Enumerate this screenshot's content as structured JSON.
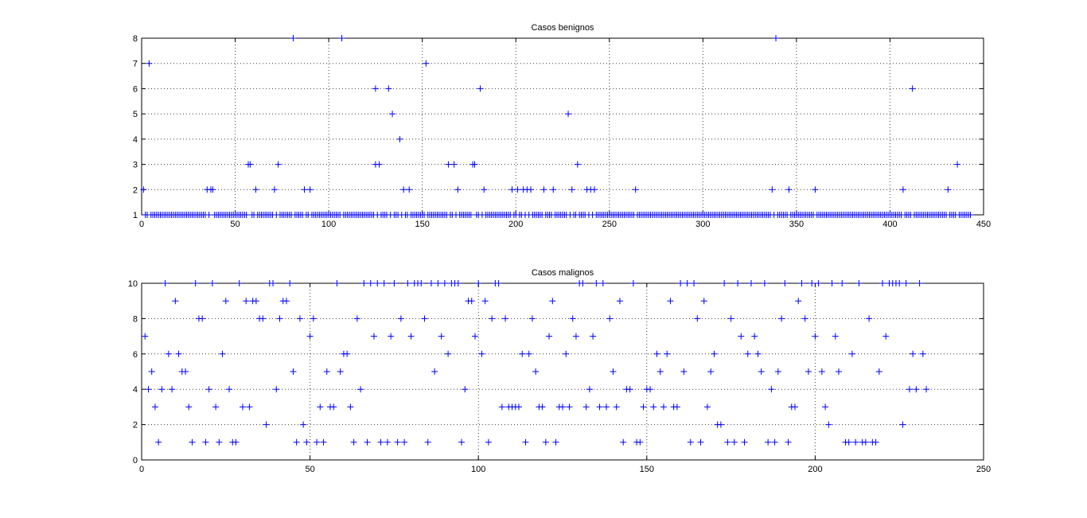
{
  "chart_data": [
    {
      "type": "scatter",
      "title": "Casos benignos",
      "xlim": [
        0,
        450
      ],
      "ylim": [
        1,
        8
      ],
      "xticks": [
        0,
        50,
        100,
        150,
        200,
        250,
        300,
        350,
        400,
        450
      ],
      "yticks": [
        1,
        2,
        3,
        4,
        5,
        6,
        7,
        8
      ],
      "grid": true,
      "marker": "+",
      "color": "#0000ff",
      "points": [
        [
          1,
          2
        ],
        [
          4,
          7
        ],
        [
          35,
          2
        ],
        [
          37,
          2
        ],
        [
          38,
          2
        ],
        [
          57,
          3
        ],
        [
          58,
          3
        ],
        [
          61,
          2
        ],
        [
          71,
          2
        ],
        [
          73,
          3
        ],
        [
          81,
          8
        ],
        [
          87,
          2
        ],
        [
          90,
          2
        ],
        [
          107,
          8
        ],
        [
          125,
          6
        ],
        [
          125,
          3
        ],
        [
          127,
          3
        ],
        [
          132,
          6
        ],
        [
          134,
          5
        ],
        [
          138,
          4
        ],
        [
          140,
          2
        ],
        [
          143,
          2
        ],
        [
          152,
          7
        ],
        [
          164,
          3
        ],
        [
          167,
          3
        ],
        [
          169,
          2
        ],
        [
          177,
          3
        ],
        [
          178,
          3
        ],
        [
          181,
          6
        ],
        [
          183,
          2
        ],
        [
          198,
          2
        ],
        [
          201,
          2
        ],
        [
          204,
          2
        ],
        [
          206,
          2
        ],
        [
          208,
          2
        ],
        [
          215,
          2
        ],
        [
          220,
          2
        ],
        [
          228,
          5
        ],
        [
          230,
          2
        ],
        [
          233,
          3
        ],
        [
          238,
          2
        ],
        [
          240,
          2
        ],
        [
          242,
          2
        ],
        [
          264,
          2
        ],
        [
          337,
          2
        ],
        [
          339,
          8
        ],
        [
          346,
          2
        ],
        [
          360,
          2
        ],
        [
          407,
          2
        ],
        [
          412,
          6
        ],
        [
          431,
          2
        ],
        [
          436,
          3
        ]
      ],
      "baseline": {
        "y": 1,
        "x_start": 1,
        "x_end": 443
      }
    },
    {
      "type": "scatter",
      "title": "Casos malignos",
      "xlim": [
        0,
        250
      ],
      "ylim": [
        0,
        10
      ],
      "xticks": [
        0,
        50,
        100,
        150,
        200,
        250
      ],
      "yticks": [
        0,
        2,
        4,
        6,
        8,
        10
      ],
      "grid": true,
      "marker": "+",
      "color": "#0000ff",
      "points": [
        [
          1,
          7
        ],
        [
          2,
          4
        ],
        [
          3,
          5
        ],
        [
          4,
          3
        ],
        [
          5,
          1
        ],
        [
          6,
          4
        ],
        [
          7,
          10
        ],
        [
          8,
          6
        ],
        [
          9,
          4
        ],
        [
          10,
          9
        ],
        [
          11,
          6
        ],
        [
          12,
          5
        ],
        [
          13,
          5
        ],
        [
          14,
          3
        ],
        [
          15,
          1
        ],
        [
          16,
          10
        ],
        [
          17,
          8
        ],
        [
          18,
          8
        ],
        [
          19,
          1
        ],
        [
          20,
          4
        ],
        [
          21,
          10
        ],
        [
          22,
          3
        ],
        [
          23,
          1
        ],
        [
          24,
          6
        ],
        [
          25,
          9
        ],
        [
          26,
          4
        ],
        [
          27,
          1
        ],
        [
          28,
          1
        ],
        [
          29,
          10
        ],
        [
          30,
          3
        ],
        [
          31,
          9
        ],
        [
          32,
          3
        ],
        [
          33,
          9
        ],
        [
          34,
          9
        ],
        [
          35,
          8
        ],
        [
          36,
          8
        ],
        [
          37,
          2
        ],
        [
          38,
          10
        ],
        [
          39,
          10
        ],
        [
          40,
          4
        ],
        [
          41,
          8
        ],
        [
          42,
          9
        ],
        [
          43,
          9
        ],
        [
          44,
          10
        ],
        [
          45,
          5
        ],
        [
          46,
          1
        ],
        [
          47,
          8
        ],
        [
          48,
          2
        ],
        [
          49,
          1
        ],
        [
          50,
          7
        ],
        [
          51,
          8
        ],
        [
          52,
          1
        ],
        [
          53,
          3
        ],
        [
          54,
          1
        ],
        [
          55,
          5
        ],
        [
          56,
          3
        ],
        [
          57,
          3
        ],
        [
          58,
          10
        ],
        [
          59,
          5
        ],
        [
          60,
          6
        ],
        [
          61,
          6
        ],
        [
          62,
          3
        ],
        [
          63,
          1
        ],
        [
          64,
          8
        ],
        [
          65,
          4
        ],
        [
          66,
          10
        ],
        [
          67,
          1
        ],
        [
          68,
          10
        ],
        [
          69,
          7
        ],
        [
          70,
          10
        ],
        [
          71,
          1
        ],
        [
          72,
          10
        ],
        [
          73,
          1
        ],
        [
          74,
          7
        ],
        [
          75,
          10
        ],
        [
          76,
          1
        ],
        [
          77,
          8
        ],
        [
          78,
          1
        ],
        [
          79,
          10
        ],
        [
          80,
          7
        ],
        [
          81,
          10
        ],
        [
          82,
          10
        ],
        [
          83,
          10
        ],
        [
          84,
          8
        ],
        [
          85,
          1
        ],
        [
          86,
          10
        ],
        [
          87,
          5
        ],
        [
          88,
          10
        ],
        [
          89,
          7
        ],
        [
          90,
          10
        ],
        [
          91,
          6
        ],
        [
          92,
          10
        ],
        [
          93,
          10
        ],
        [
          94,
          10
        ],
        [
          95,
          1
        ],
        [
          96,
          4
        ],
        [
          97,
          9
        ],
        [
          98,
          9
        ],
        [
          99,
          7
        ],
        [
          100,
          10
        ],
        [
          101,
          6
        ],
        [
          102,
          9
        ],
        [
          103,
          1
        ],
        [
          104,
          8
        ],
        [
          105,
          10
        ],
        [
          106,
          10
        ],
        [
          107,
          3
        ],
        [
          108,
          8
        ],
        [
          109,
          3
        ],
        [
          110,
          3
        ],
        [
          111,
          3
        ],
        [
          112,
          3
        ],
        [
          113,
          6
        ],
        [
          114,
          1
        ],
        [
          115,
          6
        ],
        [
          116,
          8
        ],
        [
          117,
          5
        ],
        [
          118,
          3
        ],
        [
          119,
          3
        ],
        [
          120,
          1
        ],
        [
          121,
          7
        ],
        [
          122,
          9
        ],
        [
          123,
          1
        ],
        [
          124,
          3
        ],
        [
          125,
          3
        ],
        [
          126,
          6
        ],
        [
          127,
          3
        ],
        [
          128,
          8
        ],
        [
          129,
          7
        ],
        [
          130,
          10
        ],
        [
          131,
          10
        ],
        [
          132,
          3
        ],
        [
          133,
          4
        ],
        [
          134,
          7
        ],
        [
          135,
          10
        ],
        [
          136,
          3
        ],
        [
          137,
          10
        ],
        [
          138,
          3
        ],
        [
          139,
          8
        ],
        [
          140,
          5
        ],
        [
          141,
          3
        ],
        [
          142,
          9
        ],
        [
          143,
          1
        ],
        [
          144,
          4
        ],
        [
          145,
          4
        ],
        [
          146,
          10
        ],
        [
          147,
          1
        ],
        [
          148,
          1
        ],
        [
          149,
          3
        ],
        [
          150,
          4
        ],
        [
          151,
          4
        ],
        [
          152,
          3
        ],
        [
          153,
          6
        ],
        [
          154,
          5
        ],
        [
          155,
          3
        ],
        [
          156,
          6
        ],
        [
          157,
          9
        ],
        [
          158,
          3
        ],
        [
          159,
          3
        ],
        [
          160,
          10
        ],
        [
          161,
          5
        ],
        [
          162,
          10
        ],
        [
          163,
          1
        ],
        [
          164,
          10
        ],
        [
          165,
          8
        ],
        [
          166,
          1
        ],
        [
          167,
          9
        ],
        [
          168,
          3
        ],
        [
          169,
          5
        ],
        [
          170,
          6
        ],
        [
          171,
          2
        ],
        [
          172,
          2
        ],
        [
          173,
          10
        ],
        [
          174,
          1
        ],
        [
          175,
          8
        ],
        [
          176,
          1
        ],
        [
          177,
          10
        ],
        [
          178,
          7
        ],
        [
          179,
          1
        ],
        [
          180,
          6
        ],
        [
          181,
          10
        ],
        [
          182,
          7
        ],
        [
          183,
          6
        ],
        [
          184,
          5
        ],
        [
          185,
          10
        ],
        [
          186,
          1
        ],
        [
          187,
          4
        ],
        [
          188,
          1
        ],
        [
          189,
          5
        ],
        [
          190,
          8
        ],
        [
          191,
          10
        ],
        [
          192,
          1
        ],
        [
          193,
          3
        ],
        [
          194,
          3
        ],
        [
          195,
          9
        ],
        [
          196,
          10
        ],
        [
          197,
          8
        ],
        [
          198,
          5
        ],
        [
          199,
          10
        ],
        [
          200,
          7
        ],
        [
          201,
          10
        ],
        [
          202,
          5
        ],
        [
          203,
          3
        ],
        [
          204,
          2
        ],
        [
          205,
          10
        ],
        [
          206,
          7
        ],
        [
          207,
          5
        ],
        [
          208,
          10
        ],
        [
          209,
          1
        ],
        [
          210,
          1
        ],
        [
          211,
          6
        ],
        [
          212,
          1
        ],
        [
          213,
          10
        ],
        [
          214,
          1
        ],
        [
          215,
          1
        ],
        [
          216,
          8
        ],
        [
          217,
          1
        ],
        [
          218,
          1
        ],
        [
          219,
          5
        ],
        [
          220,
          10
        ],
        [
          221,
          7
        ],
        [
          222,
          10
        ],
        [
          223,
          10
        ],
        [
          224,
          10
        ],
        [
          225,
          10
        ],
        [
          226,
          2
        ],
        [
          227,
          10
        ],
        [
          228,
          4
        ],
        [
          229,
          6
        ],
        [
          230,
          4
        ],
        [
          231,
          10
        ],
        [
          232,
          6
        ],
        [
          233,
          4
        ]
      ]
    }
  ]
}
